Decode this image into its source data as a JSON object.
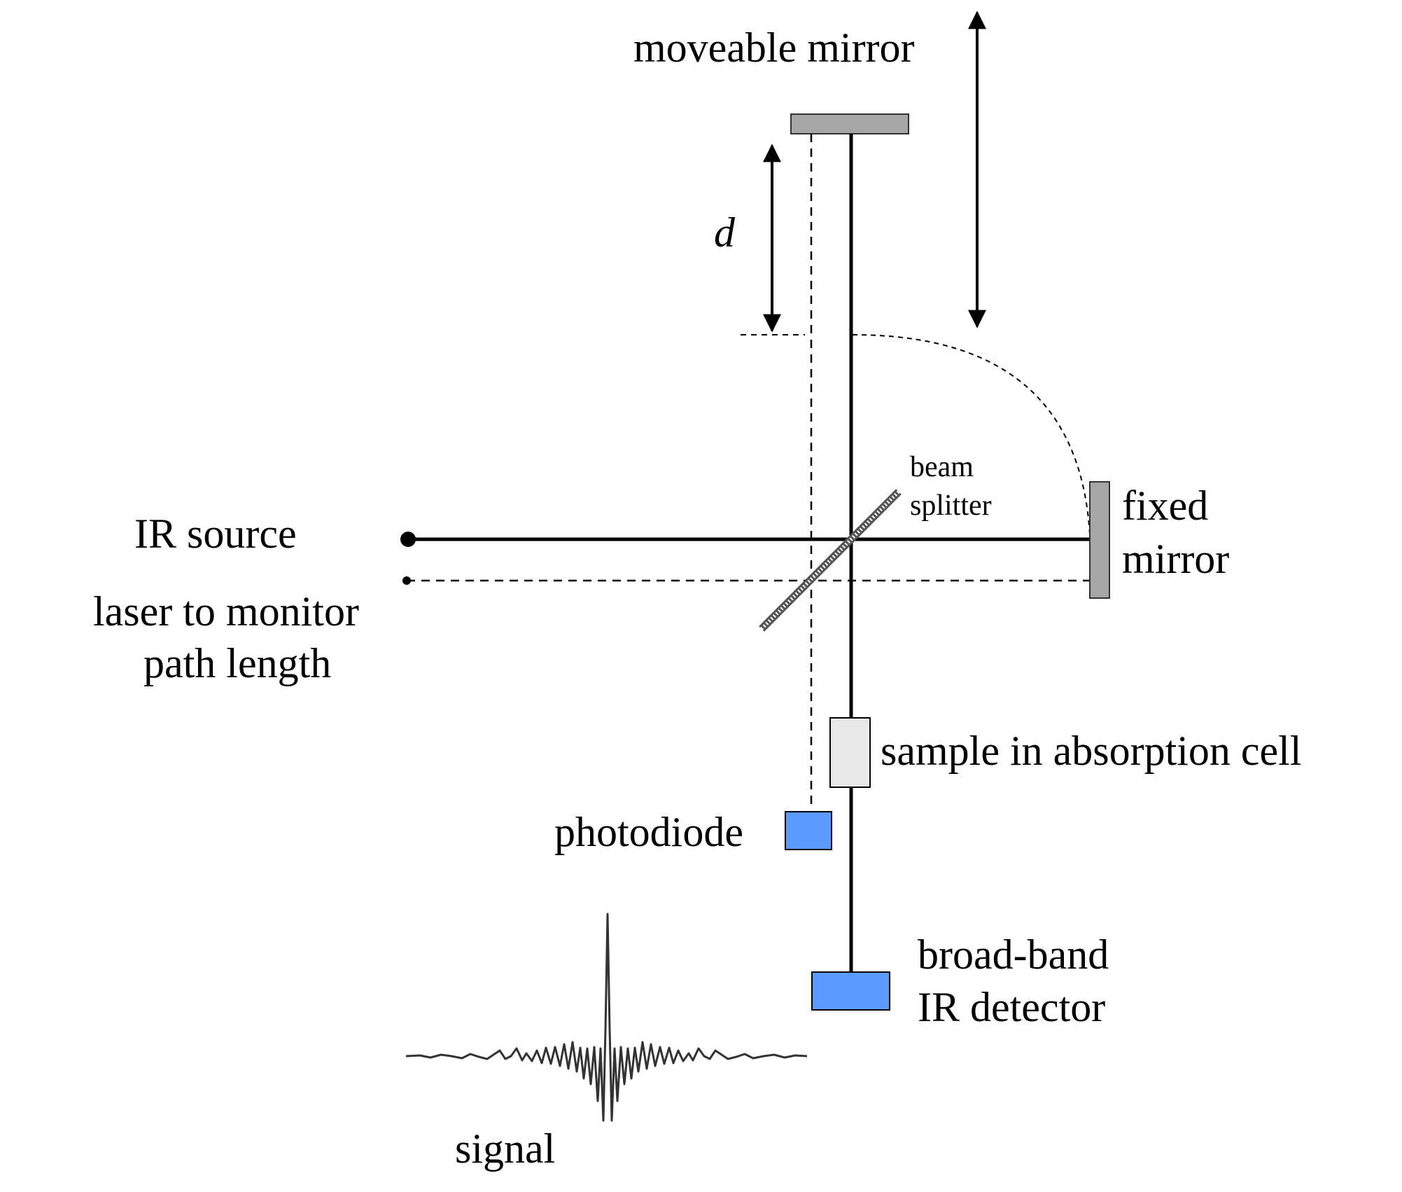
{
  "labels": {
    "moveable_mirror": "moveable mirror",
    "distance": "d",
    "beam_splitter_line1": "beam",
    "beam_splitter_line2": "splitter",
    "ir_source": "IR source",
    "fixed_mirror_line1": "fixed",
    "fixed_mirror_line2": "mirror",
    "laser_line1": "laser to monitor",
    "laser_line2": "path length",
    "sample": "sample in absorption cell",
    "photodiode": "photodiode",
    "detector_line1": "broad-band",
    "detector_line2": "IR detector",
    "signal": "signal"
  },
  "colors": {
    "mirror": "#a6a6a6",
    "sample_cell": "#e8e8e8",
    "detector": "#5b9bff",
    "beam": "#000000",
    "signal_trace": "#333333"
  }
}
